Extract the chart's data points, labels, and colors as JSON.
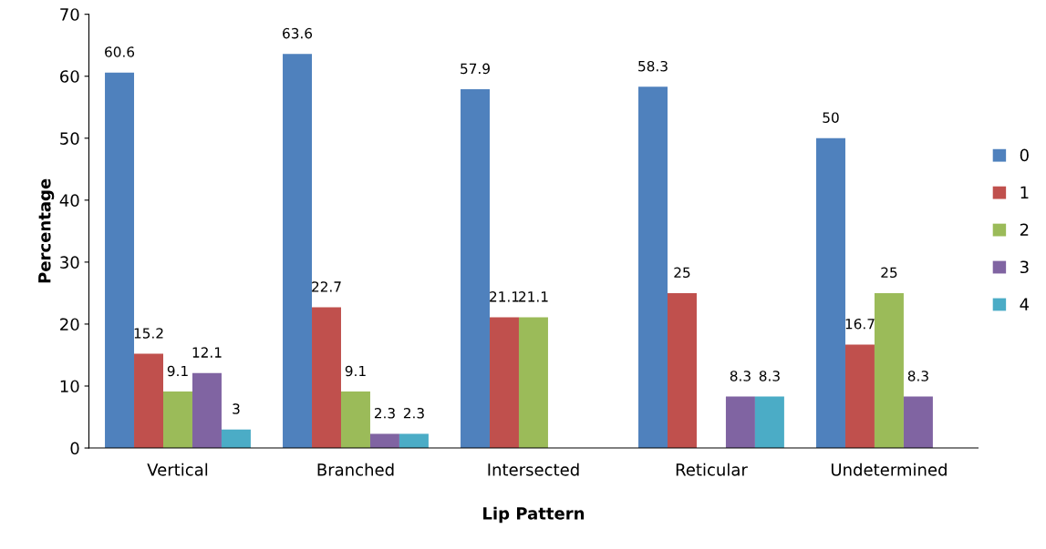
{
  "chart_data": {
    "type": "bar",
    "xlabel": "Lip Pattern",
    "ylabel": "Percentage",
    "categories": [
      "Vertical",
      "Branched",
      "Intersected",
      "Reticular",
      "Undetermined"
    ],
    "series": [
      {
        "name": "0",
        "color": "#4f81bd",
        "values": [
          60.6,
          63.6,
          57.9,
          58.3,
          50
        ]
      },
      {
        "name": "1",
        "color": "#c0504d",
        "values": [
          15.2,
          22.7,
          21.1,
          25,
          16.7
        ]
      },
      {
        "name": "2",
        "color": "#9bbb59",
        "values": [
          9.1,
          9.1,
          21.1,
          null,
          25
        ]
      },
      {
        "name": "3",
        "color": "#8064a2",
        "values": [
          12.1,
          2.3,
          null,
          8.3,
          8.3
        ]
      },
      {
        "name": "4",
        "color": "#4bacc6",
        "values": [
          3,
          2.3,
          null,
          8.3,
          null
        ]
      }
    ],
    "ylim": [
      0,
      70
    ],
    "yticks": [
      0,
      10,
      20,
      30,
      40,
      50,
      60,
      70
    ],
    "grid": false,
    "legend": "right",
    "data_labels": true
  }
}
